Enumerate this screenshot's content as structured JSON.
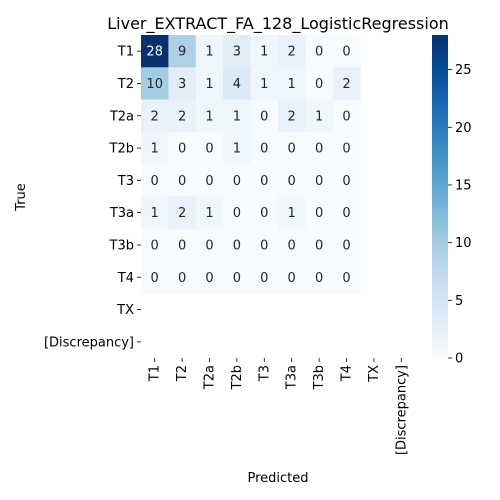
{
  "chart_data": {
    "type": "heatmap",
    "title": "Liver_EXTRACT_FA_128_LogisticRegression",
    "xlabel": "Predicted",
    "ylabel": "True",
    "x_labels": [
      "T1",
      "T2",
      "T2a",
      "T2b",
      "T3",
      "T3a",
      "T3b",
      "T4",
      "TX",
      "[Discrepancy]"
    ],
    "y_labels": [
      "T1",
      "T2",
      "T2a",
      "T2b",
      "T3",
      "T3a",
      "T3b",
      "T4",
      "TX",
      "[Discrepancy]"
    ],
    "values": [
      [
        28,
        9,
        1,
        3,
        1,
        2,
        0,
        0,
        null,
        null
      ],
      [
        10,
        3,
        1,
        4,
        1,
        1,
        0,
        2,
        null,
        null
      ],
      [
        2,
        2,
        1,
        1,
        0,
        2,
        1,
        0,
        null,
        null
      ],
      [
        1,
        0,
        0,
        1,
        0,
        0,
        0,
        0,
        null,
        null
      ],
      [
        0,
        0,
        0,
        0,
        0,
        0,
        0,
        0,
        null,
        null
      ],
      [
        1,
        2,
        1,
        0,
        0,
        1,
        0,
        0,
        null,
        null
      ],
      [
        0,
        0,
        0,
        0,
        0,
        0,
        0,
        0,
        null,
        null
      ],
      [
        0,
        0,
        0,
        0,
        0,
        0,
        0,
        0,
        null,
        null
      ],
      [
        null,
        null,
        null,
        null,
        null,
        null,
        null,
        null,
        null,
        null
      ],
      [
        null,
        null,
        null,
        null,
        null,
        null,
        null,
        null,
        null,
        null
      ]
    ],
    "colormap": "Blues",
    "colorbar": {
      "min": 0,
      "max": 28,
      "ticks": [
        0,
        5,
        10,
        15,
        20,
        25
      ]
    }
  }
}
